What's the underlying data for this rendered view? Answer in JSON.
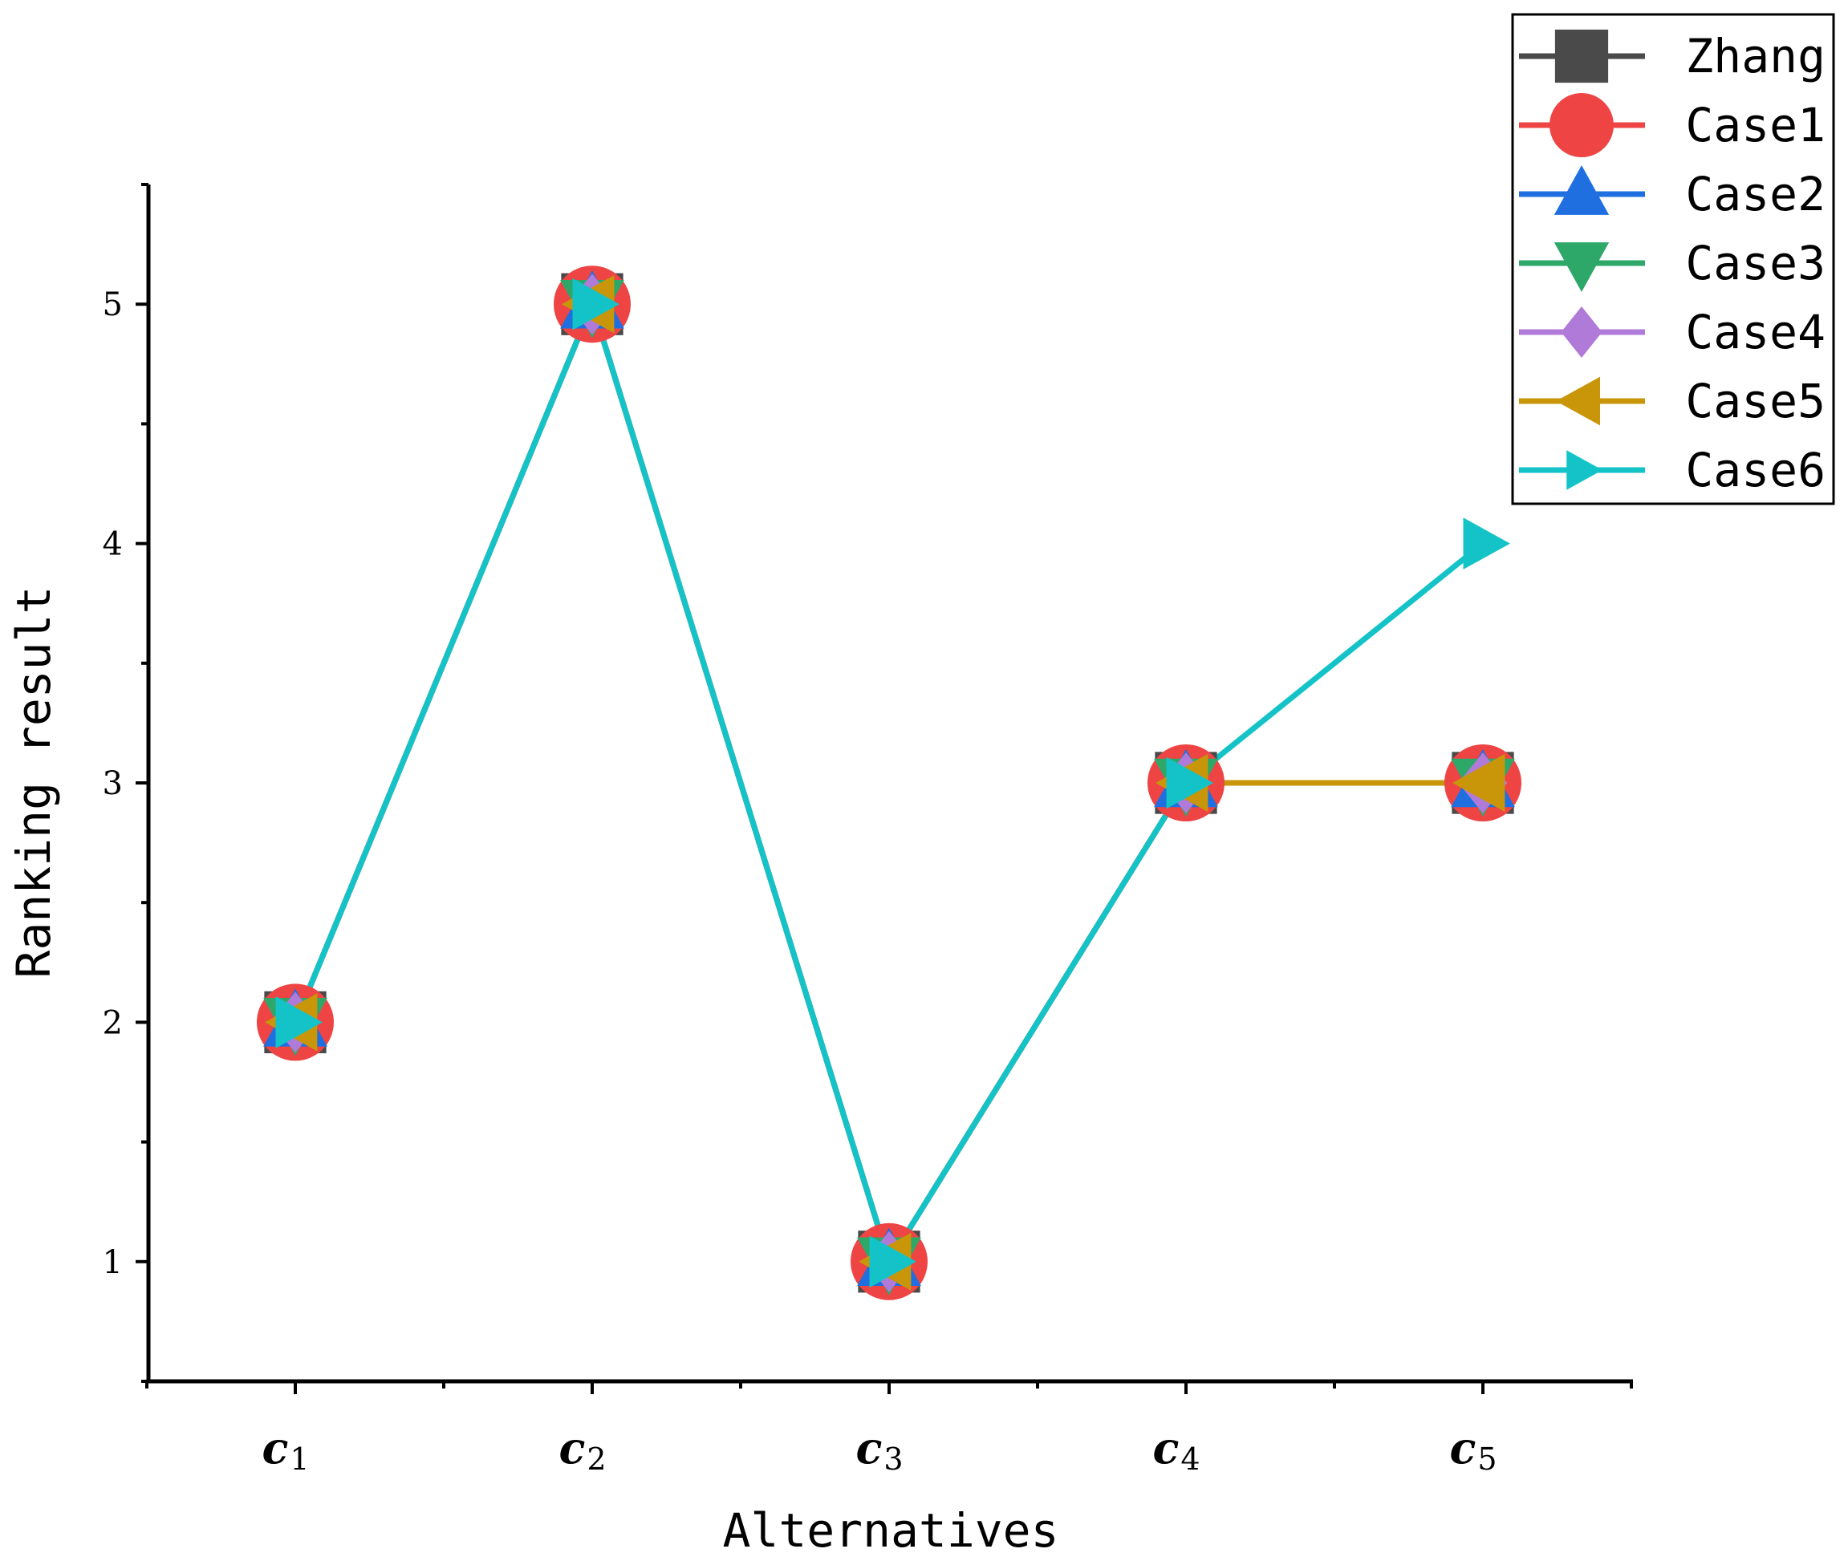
{
  "chart_data": {
    "type": "line",
    "xlabel": "Alternatives",
    "ylabel": "Ranking result",
    "ylim": [
      0.5,
      5.5
    ],
    "yticks": [
      1,
      2,
      3,
      4,
      5
    ],
    "categories": [
      {
        "base": "c",
        "sub": "1"
      },
      {
        "base": "c",
        "sub": "2"
      },
      {
        "base": "c",
        "sub": "3"
      },
      {
        "base": "c",
        "sub": "4"
      },
      {
        "base": "c",
        "sub": "5"
      }
    ],
    "legend_position": "top-right",
    "grid": false,
    "series": [
      {
        "name": "Zhang",
        "color": "#4a4a4a",
        "marker": "square",
        "values": [
          2,
          5,
          1,
          3,
          3
        ]
      },
      {
        "name": "Case1",
        "color": "#ee4444",
        "marker": "circle",
        "values": [
          2,
          5,
          1,
          3,
          3
        ]
      },
      {
        "name": "Case2",
        "color": "#1f6fe0",
        "marker": "triangle-up",
        "values": [
          2,
          5,
          1,
          3,
          3
        ]
      },
      {
        "name": "Case3",
        "color": "#2ea868",
        "marker": "triangle-down",
        "values": [
          2,
          5,
          1,
          3,
          3
        ]
      },
      {
        "name": "Case4",
        "color": "#b07ad9",
        "marker": "diamond",
        "values": [
          2,
          5,
          1,
          3,
          3
        ]
      },
      {
        "name": "Case5",
        "color": "#c9960a",
        "marker": "triangle-left",
        "values": [
          2,
          5,
          1,
          3,
          3
        ]
      },
      {
        "name": "Case6",
        "color": "#14c3c8",
        "marker": "triangle-right",
        "values": [
          2,
          5,
          1,
          3,
          4
        ]
      }
    ]
  }
}
